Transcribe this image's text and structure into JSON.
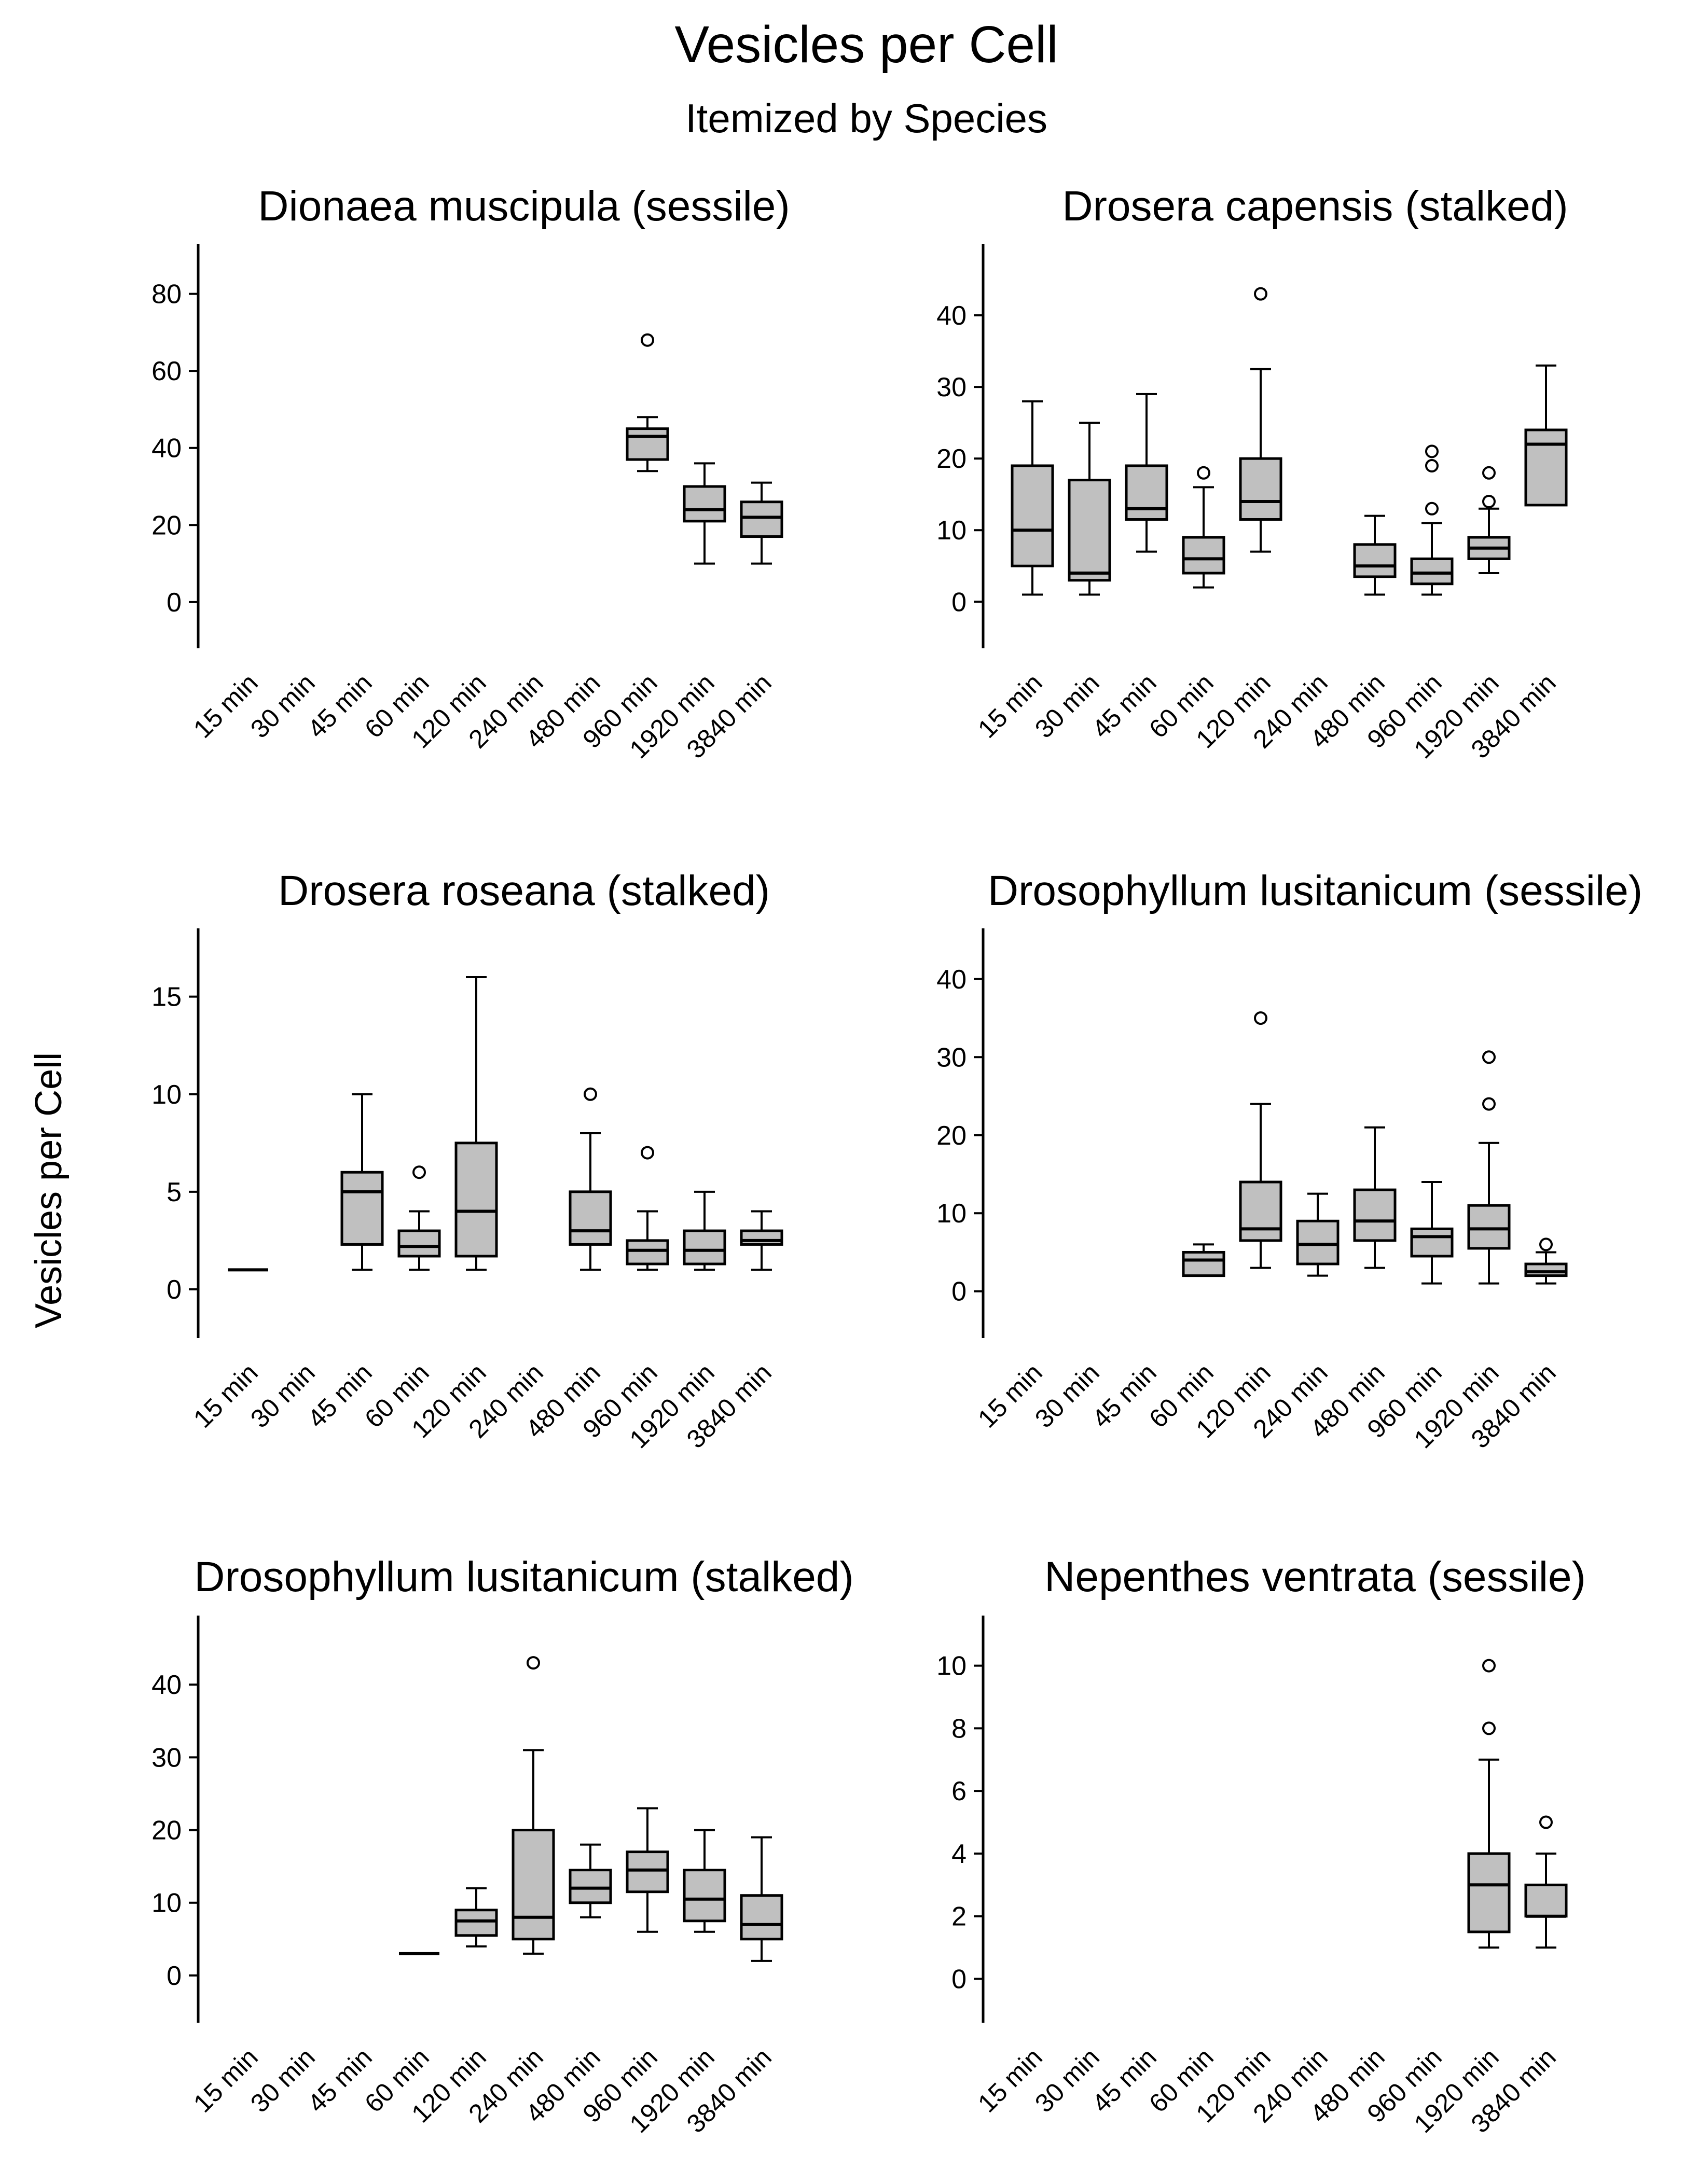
{
  "figure": {
    "title": "Vesicles per Cell",
    "subtitle": "Itemized by Species",
    "ylabel": "Vesicles per Cell"
  },
  "chart_data": [
    {
      "type": "box",
      "title": "Dionaea muscipula (sessile)",
      "categories": [
        "15 min",
        "30 min",
        "45 min",
        "60 min",
        "120 min",
        "240 min",
        "480 min",
        "960 min",
        "1920 min",
        "3840 min"
      ],
      "ylim": [
        -12,
        93
      ],
      "yticks": [
        0,
        20,
        40,
        60,
        80
      ],
      "grid": false,
      "boxes": [
        {
          "category": "960 min",
          "whisker_low": 34,
          "q1": 37,
          "median": 43,
          "q3": 45,
          "whisker_high": 48,
          "outliers": [
            68
          ]
        },
        {
          "category": "1920 min",
          "whisker_low": 10,
          "q1": 21,
          "median": 24,
          "q3": 30,
          "whisker_high": 36,
          "outliers": []
        },
        {
          "category": "3840 min",
          "whisker_low": 10,
          "q1": 17,
          "median": 22,
          "q3": 26,
          "whisker_high": 31,
          "outliers": []
        }
      ]
    },
    {
      "type": "box",
      "title": "Drosera capensis (stalked)",
      "categories": [
        "15 min",
        "30 min",
        "45 min",
        "60 min",
        "120 min",
        "240 min",
        "480 min",
        "960 min",
        "1920 min",
        "3840 min"
      ],
      "ylim": [
        -6.5,
        50
      ],
      "yticks": [
        0,
        10,
        20,
        30,
        40
      ],
      "grid": false,
      "boxes": [
        {
          "category": "15 min",
          "whisker_low": 1,
          "q1": 5,
          "median": 10,
          "q3": 19,
          "whisker_high": 28,
          "outliers": []
        },
        {
          "category": "30 min",
          "whisker_low": 1,
          "q1": 3,
          "median": 4,
          "q3": 17,
          "whisker_high": 25,
          "outliers": []
        },
        {
          "category": "45 min",
          "whisker_low": 7,
          "q1": 11.5,
          "median": 13,
          "q3": 19,
          "whisker_high": 29,
          "outliers": []
        },
        {
          "category": "60 min",
          "whisker_low": 2,
          "q1": 4,
          "median": 6,
          "q3": 9,
          "whisker_high": 16,
          "outliers": [
            18
          ]
        },
        {
          "category": "120 min",
          "whisker_low": 7,
          "q1": 11.5,
          "median": 14,
          "q3": 20,
          "whisker_high": 32.5,
          "outliers": [
            43
          ]
        },
        {
          "category": "480 min",
          "whisker_low": 1,
          "q1": 3.5,
          "median": 5,
          "q3": 8,
          "whisker_high": 12,
          "outliers": []
        },
        {
          "category": "960 min",
          "whisker_low": 1,
          "q1": 2.5,
          "median": 4,
          "q3": 6,
          "whisker_high": 11,
          "outliers": [
            13,
            19,
            21
          ]
        },
        {
          "category": "1920 min",
          "whisker_low": 4,
          "q1": 6,
          "median": 7.5,
          "q3": 9,
          "whisker_high": 13,
          "outliers": [
            14,
            18
          ]
        },
        {
          "category": "3840 min",
          "whisker_low": 13.5,
          "q1": 13.5,
          "median": 22,
          "q3": 24,
          "whisker_high": 33,
          "outliers": []
        }
      ]
    },
    {
      "type": "box",
      "title": "Drosera roseana (stalked)",
      "categories": [
        "15 min",
        "30 min",
        "45 min",
        "60 min",
        "120 min",
        "240 min",
        "480 min",
        "960 min",
        "1920 min",
        "3840 min"
      ],
      "ylim": [
        -2.5,
        18.5
      ],
      "yticks": [
        0,
        5,
        10,
        15
      ],
      "grid": false,
      "boxes": [
        {
          "category": "15 min",
          "whisker_low": 1,
          "q1": 1,
          "median": 1,
          "q3": 1,
          "whisker_high": 1,
          "outliers": []
        },
        {
          "category": "45 min",
          "whisker_low": 1,
          "q1": 2.3,
          "median": 5,
          "q3": 6,
          "whisker_high": 10,
          "outliers": []
        },
        {
          "category": "60 min",
          "whisker_low": 1,
          "q1": 1.7,
          "median": 2.2,
          "q3": 3,
          "whisker_high": 4,
          "outliers": [
            6
          ]
        },
        {
          "category": "120 min",
          "whisker_low": 1,
          "q1": 1.7,
          "median": 4,
          "q3": 7.5,
          "whisker_high": 16,
          "outliers": []
        },
        {
          "category": "480 min",
          "whisker_low": 1,
          "q1": 2.3,
          "median": 3,
          "q3": 5,
          "whisker_high": 8,
          "outliers": [
            10
          ]
        },
        {
          "category": "960 min",
          "whisker_low": 1,
          "q1": 1.3,
          "median": 2,
          "q3": 2.5,
          "whisker_high": 4,
          "outliers": [
            7
          ]
        },
        {
          "category": "1920 min",
          "whisker_low": 1,
          "q1": 1.3,
          "median": 2,
          "q3": 3,
          "whisker_high": 5,
          "outliers": []
        },
        {
          "category": "3840 min",
          "whisker_low": 1,
          "q1": 2.3,
          "median": 2.5,
          "q3": 3,
          "whisker_high": 4,
          "outliers": []
        }
      ]
    },
    {
      "type": "box",
      "title": "Drosophyllum lusitanicum (sessile)",
      "categories": [
        "15 min",
        "30 min",
        "45 min",
        "60 min",
        "120 min",
        "240 min",
        "480 min",
        "960 min",
        "1920 min",
        "3840 min"
      ],
      "ylim": [
        -6,
        46.5
      ],
      "yticks": [
        0,
        10,
        20,
        30,
        40
      ],
      "grid": false,
      "boxes": [
        {
          "category": "60 min",
          "whisker_low": 2,
          "q1": 2,
          "median": 4,
          "q3": 5,
          "whisker_high": 6,
          "outliers": []
        },
        {
          "category": "120 min",
          "whisker_low": 3,
          "q1": 6.5,
          "median": 8,
          "q3": 14,
          "whisker_high": 24,
          "outliers": [
            35
          ]
        },
        {
          "category": "240 min",
          "whisker_low": 2,
          "q1": 3.5,
          "median": 6,
          "q3": 9,
          "whisker_high": 12.5,
          "outliers": []
        },
        {
          "category": "480 min",
          "whisker_low": 3,
          "q1": 6.5,
          "median": 9,
          "q3": 13,
          "whisker_high": 21,
          "outliers": []
        },
        {
          "category": "960 min",
          "whisker_low": 1,
          "q1": 4.5,
          "median": 7,
          "q3": 8,
          "whisker_high": 14,
          "outliers": []
        },
        {
          "category": "1920 min",
          "whisker_low": 1,
          "q1": 5.5,
          "median": 8,
          "q3": 11,
          "whisker_high": 19,
          "outliers": [
            24,
            30
          ]
        },
        {
          "category": "3840 min",
          "whisker_low": 1,
          "q1": 2,
          "median": 2.5,
          "q3": 3.5,
          "whisker_high": 5,
          "outliers": [
            6
          ]
        }
      ]
    },
    {
      "type": "box",
      "title": "Drosophyllum lusitanicum (stalked)",
      "categories": [
        "15 min",
        "30 min",
        "45 min",
        "60 min",
        "120 min",
        "240 min",
        "480 min",
        "960 min",
        "1920 min",
        "3840 min"
      ],
      "ylim": [
        -6.5,
        49.5
      ],
      "yticks": [
        0,
        10,
        20,
        30,
        40
      ],
      "grid": false,
      "boxes": [
        {
          "category": "60 min",
          "whisker_low": 3,
          "q1": 3,
          "median": 3,
          "q3": 3,
          "whisker_high": 3,
          "outliers": []
        },
        {
          "category": "120 min",
          "whisker_low": 4,
          "q1": 5.5,
          "median": 7.5,
          "q3": 9,
          "whisker_high": 12,
          "outliers": []
        },
        {
          "category": "240 min",
          "whisker_low": 3,
          "q1": 5,
          "median": 8,
          "q3": 20,
          "whisker_high": 31,
          "outliers": [
            43
          ]
        },
        {
          "category": "480 min",
          "whisker_low": 8,
          "q1": 10,
          "median": 12,
          "q3": 14.5,
          "whisker_high": 18,
          "outliers": []
        },
        {
          "category": "960 min",
          "whisker_low": 6,
          "q1": 11.5,
          "median": 14.5,
          "q3": 17,
          "whisker_high": 23,
          "outliers": []
        },
        {
          "category": "1920 min",
          "whisker_low": 6,
          "q1": 7.5,
          "median": 10.5,
          "q3": 14.5,
          "whisker_high": 20,
          "outliers": []
        },
        {
          "category": "3840 min",
          "whisker_low": 2,
          "q1": 5,
          "median": 7,
          "q3": 11,
          "whisker_high": 19,
          "outliers": []
        }
      ]
    },
    {
      "type": "box",
      "title": "Nepenthes ventrata (sessile)",
      "categories": [
        "15 min",
        "30 min",
        "45 min",
        "60 min",
        "120 min",
        "240 min",
        "480 min",
        "960 min",
        "1920 min",
        "3840 min"
      ],
      "ylim": [
        -1.4,
        11.6
      ],
      "yticks": [
        0,
        2,
        4,
        6,
        8,
        10
      ],
      "grid": false,
      "boxes": [
        {
          "category": "1920 min",
          "whisker_low": 1,
          "q1": 1.5,
          "median": 3,
          "q3": 4,
          "whisker_high": 7,
          "outliers": [
            8,
            10
          ]
        },
        {
          "category": "3840 min",
          "whisker_low": 1,
          "q1": 2,
          "median": 2,
          "q3": 3,
          "whisker_high": 4,
          "outliers": [
            5
          ]
        }
      ]
    }
  ]
}
